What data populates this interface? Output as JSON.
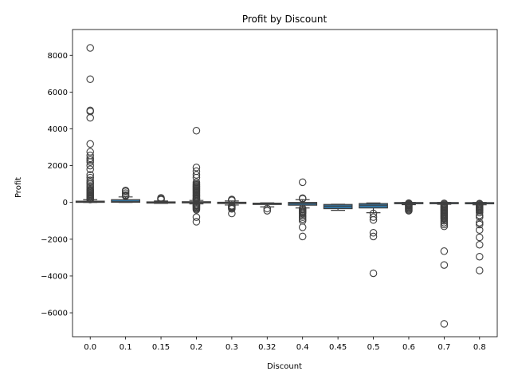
{
  "chart_data": {
    "type": "box",
    "title": "Profit by Discount",
    "xlabel": "Discount",
    "ylabel": "Profit",
    "ylim": [
      -7300,
      9400
    ],
    "yticks": [
      -6000,
      -4000,
      -2000,
      0,
      2000,
      4000,
      6000,
      8000
    ],
    "ytick_labels": [
      "−6000",
      "−4000",
      "−2000",
      "0",
      "2000",
      "4000",
      "6000",
      "8000"
    ],
    "box_color": "#3274a1",
    "categories": [
      "0.0",
      "0.1",
      "0.15",
      "0.2",
      "0.3",
      "0.32",
      "0.4",
      "0.45",
      "0.5",
      "0.6",
      "0.7",
      "0.8"
    ],
    "boxes": [
      {
        "q1": 10,
        "median": 25,
        "q3": 70,
        "whislo": 0.1,
        "whishi": 150,
        "fliers": [
          8400,
          6700,
          5000,
          4950,
          4600,
          3180,
          2750,
          2550,
          2400,
          2300,
          2200,
          2000,
          1800,
          1500,
          1350,
          1200,
          1100,
          1000,
          900,
          800,
          700,
          650,
          600,
          550,
          500,
          450,
          400,
          350,
          300,
          250,
          200,
          180,
          160
        ]
      },
      {
        "q1": 10,
        "median": 40,
        "q3": 150,
        "whislo": 0.5,
        "whishi": 300,
        "fliers": [
          650,
          600,
          500,
          400,
          350
        ]
      },
      {
        "q1": -5,
        "median": 10,
        "q3": 30,
        "whislo": -50,
        "whishi": 80,
        "fliers": [
          250,
          200,
          180,
          150
        ]
      },
      {
        "q1": -5,
        "median": 10,
        "q3": 40,
        "whislo": -80,
        "whishi": 110,
        "fliers": [
          3900,
          1900,
          1700,
          1500,
          1350,
          1100,
          1000,
          950,
          900,
          850,
          800,
          750,
          700,
          650,
          600,
          550,
          500,
          450,
          400,
          350,
          300,
          250,
          200,
          180,
          150,
          -120,
          -150,
          -180,
          -200,
          -250,
          -300,
          -350,
          -400,
          -800,
          -1050
        ]
      },
      {
        "q1": -60,
        "median": -10,
        "q3": 10,
        "whislo": -140,
        "whishi": 80,
        "fliers": [
          160,
          140,
          110,
          -180,
          -220,
          -260,
          -300,
          -350,
          -600
        ]
      },
      {
        "q1": -110,
        "median": -70,
        "q3": -40,
        "whislo": -240,
        "whishi": -20,
        "fliers": [
          -330,
          -450
        ]
      },
      {
        "q1": -150,
        "median": -50,
        "q3": 0,
        "whislo": -300,
        "whishi": 150,
        "fliers": [
          1100,
          230,
          200,
          -320,
          -380,
          -450,
          -500,
          -550,
          -600,
          -700,
          -800,
          -900,
          -1000,
          -1350,
          -1850
        ]
      },
      {
        "q1": -340,
        "median": -200,
        "q3": -110,
        "whislo": -430,
        "whishi": -100,
        "fliers": []
      },
      {
        "q1": -300,
        "median": -150,
        "q3": -60,
        "whislo": -560,
        "whishi": -30,
        "fliers": [
          -600,
          -800,
          -950,
          -1650,
          -1850,
          -3850
        ]
      },
      {
        "q1": -70,
        "median": -20,
        "q3": -5,
        "whislo": -120,
        "whishi": 0,
        "fliers": [
          -40,
          -80,
          -120,
          -160,
          -200,
          -250,
          -300,
          -350,
          -400,
          -450
        ]
      },
      {
        "q1": -70,
        "median": -20,
        "q3": -5,
        "whislo": -100,
        "whishi": 0,
        "fliers": [
          -50,
          -100,
          -150,
          -200,
          -250,
          -300,
          -350,
          -400,
          -450,
          -500,
          -550,
          -600,
          -650,
          -700,
          -750,
          -800,
          -850,
          -900,
          -1000,
          -1100,
          -1200,
          -1300,
          -2650,
          -3400,
          -6600
        ]
      },
      {
        "q1": -70,
        "median": -20,
        "q3": -10,
        "whislo": -130,
        "whishi": 0,
        "fliers": [
          -60,
          -100,
          -150,
          -200,
          -250,
          -300,
          -350,
          -400,
          -450,
          -550,
          -700,
          -800,
          -1100,
          -1200,
          -1500,
          -1900,
          -2300,
          -2950,
          -3700
        ]
      }
    ]
  }
}
